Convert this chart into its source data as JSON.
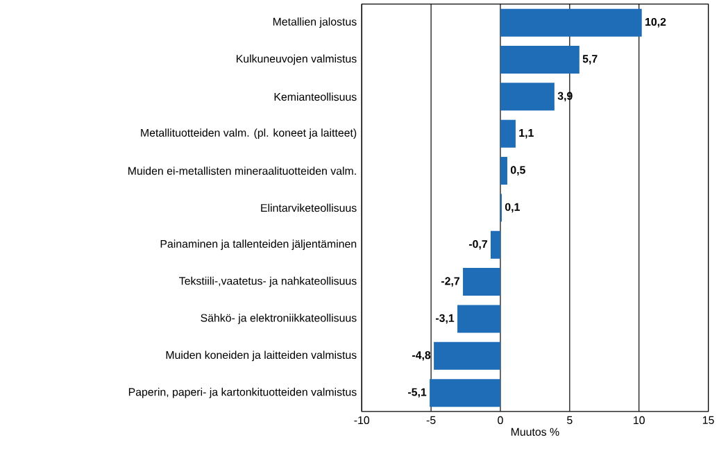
{
  "chart_data": {
    "type": "bar",
    "orientation": "horizontal",
    "xlabel": "Muutos %",
    "categories": [
      "Metallien jalostus",
      "Kulkuneuvojen valmistus",
      "Kemianteollisuus",
      "Metallituotteiden valm. (pl. koneet ja laitteet)",
      "Muiden ei-metallisten mineraalituotteiden valm.",
      "Elintarviketeollisuus",
      "Painaminen ja tallenteiden jäljentäminen",
      "Tekstiili-,vaatetus- ja nahkateollisuus",
      "Sähkö- ja elektroniikkateollisuus",
      "Muiden koneiden ja laitteiden valmistus",
      "Paperin, paperi- ja kartonkituotteiden valmistus"
    ],
    "values": [
      10.2,
      5.7,
      3.9,
      1.1,
      0.5,
      0.1,
      -0.7,
      -2.7,
      -3.1,
      -4.8,
      -5.1
    ],
    "value_labels": [
      "10,2",
      "5,7",
      "3,9",
      "1,1",
      "0,5",
      "0,1",
      "-0,7",
      "-2,7",
      "-3,1",
      "-4,8",
      "-5,1"
    ],
    "color": "#1f6db6",
    "xlim": [
      -10,
      15
    ],
    "xticks": [
      -10,
      -5,
      0,
      5,
      10,
      15
    ],
    "grid": "x"
  }
}
